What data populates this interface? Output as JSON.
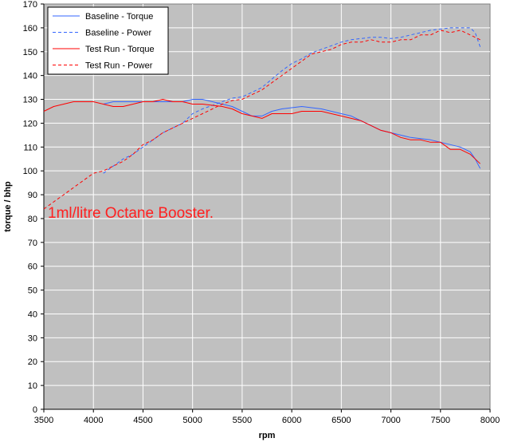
{
  "chart_data": {
    "type": "line",
    "title": "",
    "xlabel": "rpm",
    "ylabel": "torque / bhp",
    "xlim": [
      3500,
      8000
    ],
    "ylim": [
      0,
      170
    ],
    "x_ticks": [
      3500,
      4000,
      4500,
      5000,
      5500,
      6000,
      6500,
      7000,
      7500,
      8000
    ],
    "y_ticks": [
      0,
      10,
      20,
      30,
      40,
      50,
      60,
      70,
      80,
      90,
      100,
      110,
      120,
      130,
      140,
      150,
      160,
      170
    ],
    "grid": true,
    "plot_background": "#c0c0c0",
    "legend_position": "top-left",
    "annotation": "1ml/litre Octane Booster.",
    "annotation_color": "#ff2020",
    "series": [
      {
        "name": "Baseline - Torque",
        "color": "#3366ff",
        "dash": "solid",
        "x": [
          4100,
          4200,
          4300,
          4400,
          4500,
          4600,
          4700,
          4800,
          4900,
          5000,
          5100,
          5200,
          5300,
          5400,
          5500,
          5600,
          5700,
          5800,
          5900,
          6000,
          6100,
          6200,
          6300,
          6400,
          6500,
          6600,
          6700,
          6800,
          6900,
          7000,
          7100,
          7200,
          7300,
          7400,
          7500,
          7600,
          7700,
          7800,
          7850,
          7900
        ],
        "y": [
          128,
          129,
          129,
          129,
          129,
          129,
          129,
          129,
          129,
          130,
          130,
          129,
          128,
          127,
          125,
          123,
          123,
          125,
          126,
          126.5,
          127,
          126.5,
          126,
          125,
          124,
          123,
          121,
          119,
          117,
          116,
          115,
          114,
          113.5,
          113,
          112,
          111,
          110,
          108,
          105,
          101
        ]
      },
      {
        "name": "Baseline - Power",
        "color": "#3366ff",
        "dash": "dashed",
        "x": [
          4100,
          4200,
          4300,
          4400,
          4500,
          4600,
          4700,
          4800,
          4900,
          5000,
          5100,
          5200,
          5300,
          5400,
          5500,
          5600,
          5700,
          5800,
          5900,
          6000,
          6100,
          6200,
          6300,
          6400,
          6500,
          6600,
          6700,
          6800,
          6900,
          7000,
          7100,
          7200,
          7300,
          7400,
          7500,
          7600,
          7700,
          7800,
          7850,
          7900
        ],
        "y": [
          99,
          102,
          105,
          107,
          110,
          113,
          116,
          118,
          120,
          124,
          126,
          127.5,
          129,
          130.5,
          131,
          133,
          135,
          138.5,
          142,
          145,
          147,
          149.5,
          151,
          152.5,
          154,
          155,
          155.5,
          156,
          156,
          155.5,
          156,
          157,
          158,
          159,
          159.5,
          160,
          160,
          160,
          158,
          152
        ]
      },
      {
        "name": "Test Run - Torque",
        "color": "#ff0000",
        "dash": "solid",
        "x": [
          3500,
          3600,
          3700,
          3800,
          3900,
          4000,
          4100,
          4200,
          4300,
          4400,
          4500,
          4600,
          4700,
          4800,
          4900,
          5000,
          5100,
          5200,
          5300,
          5400,
          5500,
          5600,
          5700,
          5800,
          5900,
          6000,
          6100,
          6200,
          6300,
          6400,
          6500,
          6600,
          6700,
          6800,
          6900,
          7000,
          7100,
          7200,
          7300,
          7400,
          7500,
          7600,
          7700,
          7800,
          7900
        ],
        "y": [
          125,
          127,
          128,
          129,
          129,
          129,
          128,
          127,
          127,
          128,
          129,
          129,
          130,
          129,
          129,
          128,
          128,
          127.5,
          127,
          126,
          124,
          123,
          122,
          124,
          124,
          124,
          125,
          125,
          125,
          124,
          123,
          122,
          121,
          119,
          117,
          116,
          114,
          113,
          113,
          112,
          112,
          109,
          109,
          107,
          103
        ]
      },
      {
        "name": "Test Run - Power",
        "color": "#ff0000",
        "dash": "dashed",
        "x": [
          3500,
          3600,
          3700,
          3800,
          3900,
          4000,
          4100,
          4200,
          4300,
          4400,
          4500,
          4600,
          4700,
          4800,
          4900,
          5000,
          5100,
          5200,
          5300,
          5400,
          5500,
          5600,
          5700,
          5800,
          5900,
          6000,
          6100,
          6200,
          6300,
          6400,
          6500,
          6600,
          6700,
          6800,
          6900,
          7000,
          7100,
          7200,
          7300,
          7400,
          7500,
          7600,
          7700,
          7800,
          7900
        ],
        "y": [
          84,
          87,
          90,
          93,
          96,
          99,
          100,
          102,
          104,
          107,
          111,
          113,
          116,
          118,
          120,
          122,
          124,
          126,
          128,
          129.5,
          130,
          132,
          134,
          137,
          140,
          143,
          146,
          149,
          150,
          151,
          153,
          154,
          154,
          155,
          154,
          154,
          155,
          155,
          157,
          157,
          159,
          158,
          159,
          157,
          155
        ]
      }
    ]
  }
}
